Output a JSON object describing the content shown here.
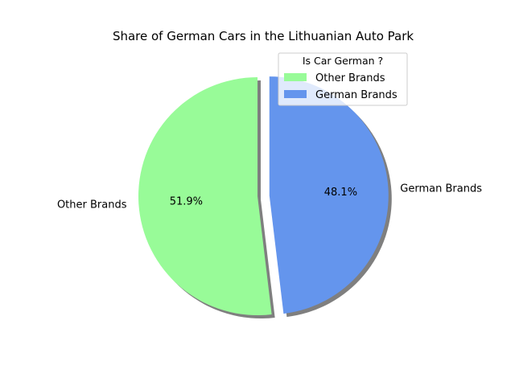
{
  "chart_data": {
    "type": "pie",
    "title": "Share of German Cars in the Lithuanian Auto Park",
    "start_angle_deg": 90,
    "direction": "counterclockwise",
    "shadow": true,
    "slices": [
      {
        "label": "Other Brands",
        "value": 51.9,
        "pct_label": "51.9%",
        "color": "#98FB98",
        "explode": 0
      },
      {
        "label": "German Brands",
        "value": 48.1,
        "pct_label": "48.1%",
        "color": "#6495ED",
        "explode": 0.1
      }
    ],
    "legend": {
      "title": "Is Car German ?",
      "placement": "top-right",
      "entries": [
        "Other Brands",
        "German Brands"
      ]
    }
  }
}
